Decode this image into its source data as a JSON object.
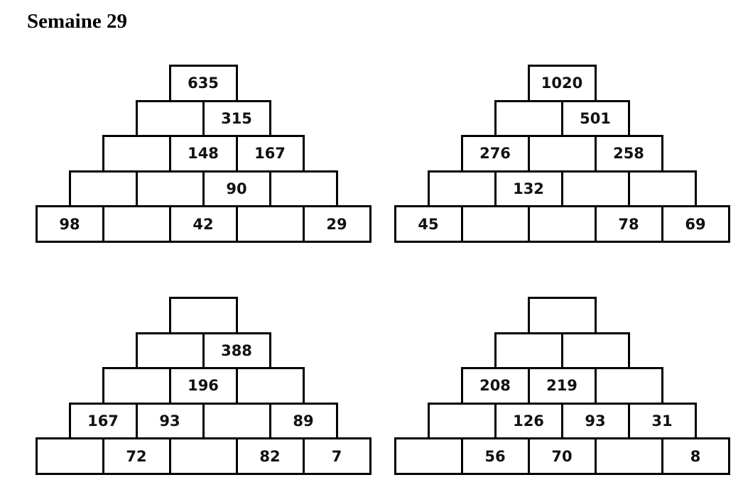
{
  "title": "Semaine 29",
  "pyramids": [
    {
      "rows": [
        [
          "635"
        ],
        [
          "",
          "315"
        ],
        [
          "",
          "148",
          "167"
        ],
        [
          "",
          "",
          "90",
          ""
        ],
        [
          "98",
          "",
          "42",
          "",
          "29"
        ]
      ]
    },
    {
      "rows": [
        [
          "1020"
        ],
        [
          "",
          "501"
        ],
        [
          "276",
          "",
          "258"
        ],
        [
          "",
          "132",
          "",
          ""
        ],
        [
          "45",
          "",
          "",
          "78",
          "69"
        ]
      ]
    },
    {
      "rows": [
        [
          ""
        ],
        [
          "",
          "388"
        ],
        [
          "",
          "196",
          ""
        ],
        [
          "167",
          "93",
          "",
          "89"
        ],
        [
          "",
          "72",
          "",
          "82",
          "7"
        ]
      ]
    },
    {
      "rows": [
        [
          ""
        ],
        [
          "",
          ""
        ],
        [
          "208",
          "219",
          ""
        ],
        [
          "",
          "126",
          "93",
          "31"
        ],
        [
          "",
          "56",
          "70",
          "",
          "8"
        ]
      ]
    }
  ]
}
